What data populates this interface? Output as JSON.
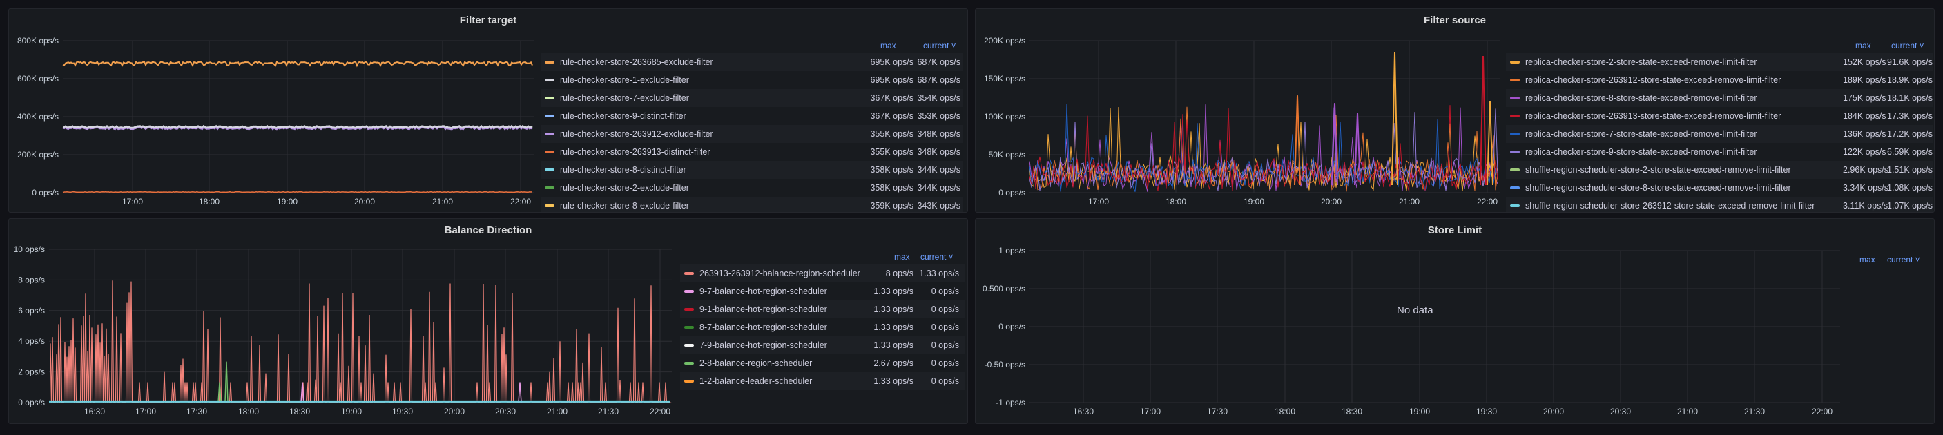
{
  "panels": {
    "filter_target": {
      "title": "Filter target",
      "y_ticks": [
        "0 ops/s",
        "200K ops/s",
        "400K ops/s",
        "600K ops/s",
        "800K ops/s"
      ],
      "x_ticks": [
        "17:00",
        "18:00",
        "19:00",
        "20:00",
        "21:00",
        "22:00"
      ],
      "legend_max_header": "max",
      "legend_current_header": "current ˅",
      "legend": [
        {
          "name": "rule-checker-store-263685-exclude-filter",
          "max": "695K ops/s",
          "current": "687K ops/s",
          "color": "#f2a04e"
        },
        {
          "name": "rule-checker-store-1-exclude-filter",
          "max": "695K ops/s",
          "current": "687K ops/s",
          "color": "#d6d7e0"
        },
        {
          "name": "rule-checker-store-7-exclude-filter",
          "max": "367K ops/s",
          "current": "354K ops/s",
          "color": "#d5f3b0"
        },
        {
          "name": "rule-checker-store-9-distinct-filter",
          "max": "367K ops/s",
          "current": "353K ops/s",
          "color": "#8ab8ff"
        },
        {
          "name": "rule-checker-store-263912-exclude-filter",
          "max": "355K ops/s",
          "current": "348K ops/s",
          "color": "#b995e6"
        },
        {
          "name": "rule-checker-store-263913-distinct-filter",
          "max": "355K ops/s",
          "current": "348K ops/s",
          "color": "#e86f3c"
        },
        {
          "name": "rule-checker-store-8-distinct-filter",
          "max": "358K ops/s",
          "current": "344K ops/s",
          "color": "#7bd6e8"
        },
        {
          "name": "rule-checker-store-2-exclude-filter",
          "max": "358K ops/s",
          "current": "344K ops/s",
          "color": "#56a64b"
        },
        {
          "name": "rule-checker-store-8-exclude-filter",
          "max": "359K ops/s",
          "current": "343K ops/s",
          "color": "#f8c45a"
        }
      ]
    },
    "filter_source": {
      "title": "Filter source",
      "y_ticks": [
        "0 ops/s",
        "50K ops/s",
        "100K ops/s",
        "150K ops/s",
        "200K ops/s"
      ],
      "x_ticks": [
        "17:00",
        "18:00",
        "19:00",
        "20:00",
        "21:00",
        "22:00"
      ],
      "legend_max_header": "max",
      "legend_current_header": "current ˅",
      "legend": [
        {
          "name": "replica-checker-store-2-store-state-exceed-remove-limit-filter",
          "max": "152K ops/s",
          "current": "91.6K ops/s",
          "color": "#f2a83a"
        },
        {
          "name": "replica-checker-store-263912-store-state-exceed-remove-limit-filter",
          "max": "189K ops/s",
          "current": "18.9K ops/s",
          "color": "#e8752f"
        },
        {
          "name": "replica-checker-store-8-store-state-exceed-remove-limit-filter",
          "max": "175K ops/s",
          "current": "18.1K ops/s",
          "color": "#a352cc"
        },
        {
          "name": "replica-checker-store-263913-store-state-exceed-remove-limit-filter",
          "max": "184K ops/s",
          "current": "17.3K ops/s",
          "color": "#c4162a"
        },
        {
          "name": "replica-checker-store-7-store-state-exceed-remove-limit-filter",
          "max": "136K ops/s",
          "current": "17.2K ops/s",
          "color": "#1f60c4"
        },
        {
          "name": "replica-checker-store-9-store-state-exceed-remove-limit-filter",
          "max": "122K ops/s",
          "current": "6.59K ops/s",
          "color": "#8f7ad8"
        },
        {
          "name": "shuffle-region-scheduler-store-2-store-state-exceed-remove-limit-filter",
          "max": "2.96K ops/s",
          "current": "1.51K ops/s",
          "color": "#9ec97a"
        },
        {
          "name": "shuffle-region-scheduler-store-8-store-state-exceed-remove-limit-filter",
          "max": "3.34K ops/s",
          "current": "1.08K ops/s",
          "color": "#5794f2"
        },
        {
          "name": "shuffle-region-scheduler-store-263912-store-state-exceed-remove-limit-filter",
          "max": "3.11K ops/s",
          "current": "1.07K ops/s",
          "color": "#6ed0e0"
        }
      ]
    },
    "balance_direction": {
      "title": "Balance Direction",
      "y_ticks": [
        "0 ops/s",
        "2 ops/s",
        "4 ops/s",
        "6 ops/s",
        "8 ops/s",
        "10 ops/s"
      ],
      "x_ticks": [
        "16:30",
        "17:00",
        "17:30",
        "18:00",
        "18:30",
        "19:00",
        "19:30",
        "20:00",
        "20:30",
        "21:00",
        "21:30",
        "22:00"
      ],
      "legend_max_header": "max",
      "legend_current_header": "current ˅",
      "legend": [
        {
          "name": "263913-263912-balance-region-scheduler",
          "max": "8 ops/s",
          "current": "1.33 ops/s",
          "color": "#f2837a"
        },
        {
          "name": "9-7-balance-hot-region-scheduler",
          "max": "1.33 ops/s",
          "current": "0 ops/s",
          "color": "#e99ae6"
        },
        {
          "name": "9-1-balance-hot-region-scheduler",
          "max": "1.33 ops/s",
          "current": "0 ops/s",
          "color": "#c4162a"
        },
        {
          "name": "8-7-balance-hot-region-scheduler",
          "max": "1.33 ops/s",
          "current": "0 ops/s",
          "color": "#37872d"
        },
        {
          "name": "7-9-balance-hot-region-scheduler",
          "max": "1.33 ops/s",
          "current": "0 ops/s",
          "color": "#f4f5f5"
        },
        {
          "name": "2-8-balance-region-scheduler",
          "max": "2.67 ops/s",
          "current": "0 ops/s",
          "color": "#73bf69"
        },
        {
          "name": "1-2-balance-leader-scheduler",
          "max": "1.33 ops/s",
          "current": "0 ops/s",
          "color": "#ff9830"
        }
      ]
    },
    "store_limit": {
      "title": "Store Limit",
      "y_ticks": [
        "-1 ops/s",
        "-0.50 ops/s",
        "0 ops/s",
        "0.500 ops/s",
        "1 ops/s"
      ],
      "x_ticks": [
        "16:30",
        "17:00",
        "17:30",
        "18:00",
        "18:30",
        "19:00",
        "19:30",
        "20:00",
        "20:30",
        "21:00",
        "21:30",
        "22:00"
      ],
      "legend_max_header": "max",
      "legend_current_header": "current ˅",
      "no_data": "No data"
    }
  }
}
